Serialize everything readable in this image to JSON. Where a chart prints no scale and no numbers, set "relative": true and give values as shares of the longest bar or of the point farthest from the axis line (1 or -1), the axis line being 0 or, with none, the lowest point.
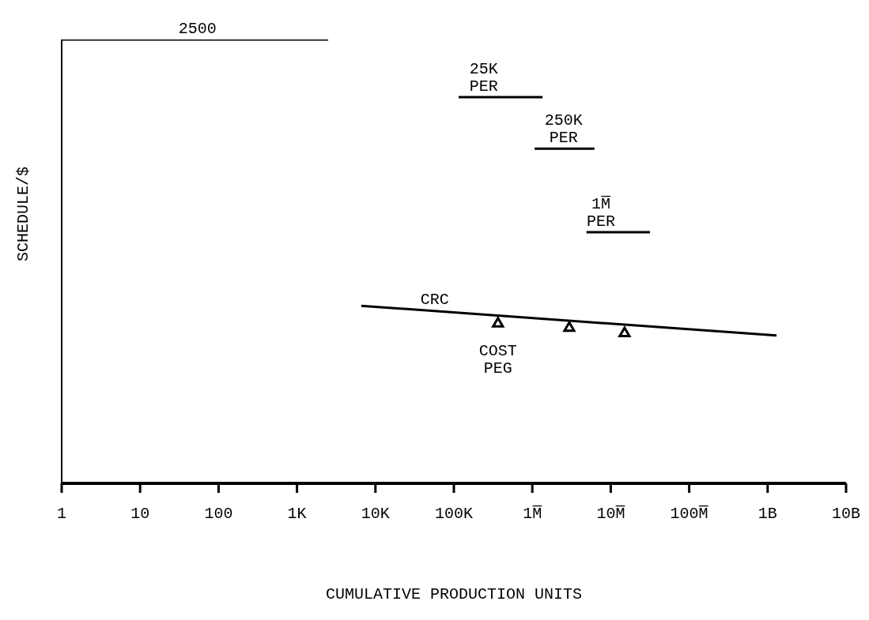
{
  "chart_data": {
    "type": "line",
    "xlabel": "CUMULATIVE PRODUCTION UNITS",
    "ylabel": "SCHEDULE/$",
    "relative": true,
    "log": "x",
    "xlim": [
      1,
      10000000000
    ],
    "xticks": [
      1,
      10,
      100,
      {
        "value": 1000,
        "label": "1K"
      },
      {
        "value": 10000,
        "label": "10K"
      },
      {
        "value": 100000,
        "label": "100K"
      },
      {
        "value": 1000000,
        "label": "1M̅"
      },
      {
        "value": 10000000,
        "label": "10M̅"
      },
      {
        "value": 100000000,
        "label": "100M̅"
      },
      {
        "value": 1000000000,
        "label": "1B"
      },
      {
        "value": 10000000000,
        "label": "10B"
      }
    ],
    "grid": false,
    "marker": "none",
    "line_style": "solid",
    "series": [
      {
        "color": "#000000",
        "x": [
          1,
          2500
        ],
        "values": [
          1,
          1
        ]
      },
      {
        "color": "#000000",
        "x": [
          115000,
          1350000
        ],
        "values": [
          0.87,
          0.87
        ]
      },
      {
        "color": "#000000",
        "x": [
          1070000,
          6200000
        ],
        "values": [
          0.754,
          0.754
        ]
      },
      {
        "color": "#000000",
        "x": [
          4900000,
          31600000
        ],
        "values": [
          0.566,
          0.566
        ]
      },
      {
        "color": "#000000",
        "x": [
          6600,
          1300000000
        ],
        "values": [
          0.4,
          0.333
        ]
      },
      {
        "type": "scatter",
        "name": "COST PEG",
        "color": "#000000",
        "marker": "triangle",
        "x": [
          365000,
          2960000,
          15000000
        ],
        "values": [
          0.36,
          0.35,
          0.338
        ]
      }
    ],
    "annotations": [
      {
        "text": "2500",
        "x": 54,
        "y": 1
      },
      {
        "text": "25K PER",
        "x": 240000,
        "y": 0.87
      },
      {
        "text": "250K PER",
        "x": 2500000,
        "y": 0.754
      },
      {
        "text": "1M̅ PER",
        "x": 7500000,
        "y": 0.566
      },
      {
        "text": "CRC",
        "x": 57000,
        "y": 0.39
      }
    ]
  }
}
